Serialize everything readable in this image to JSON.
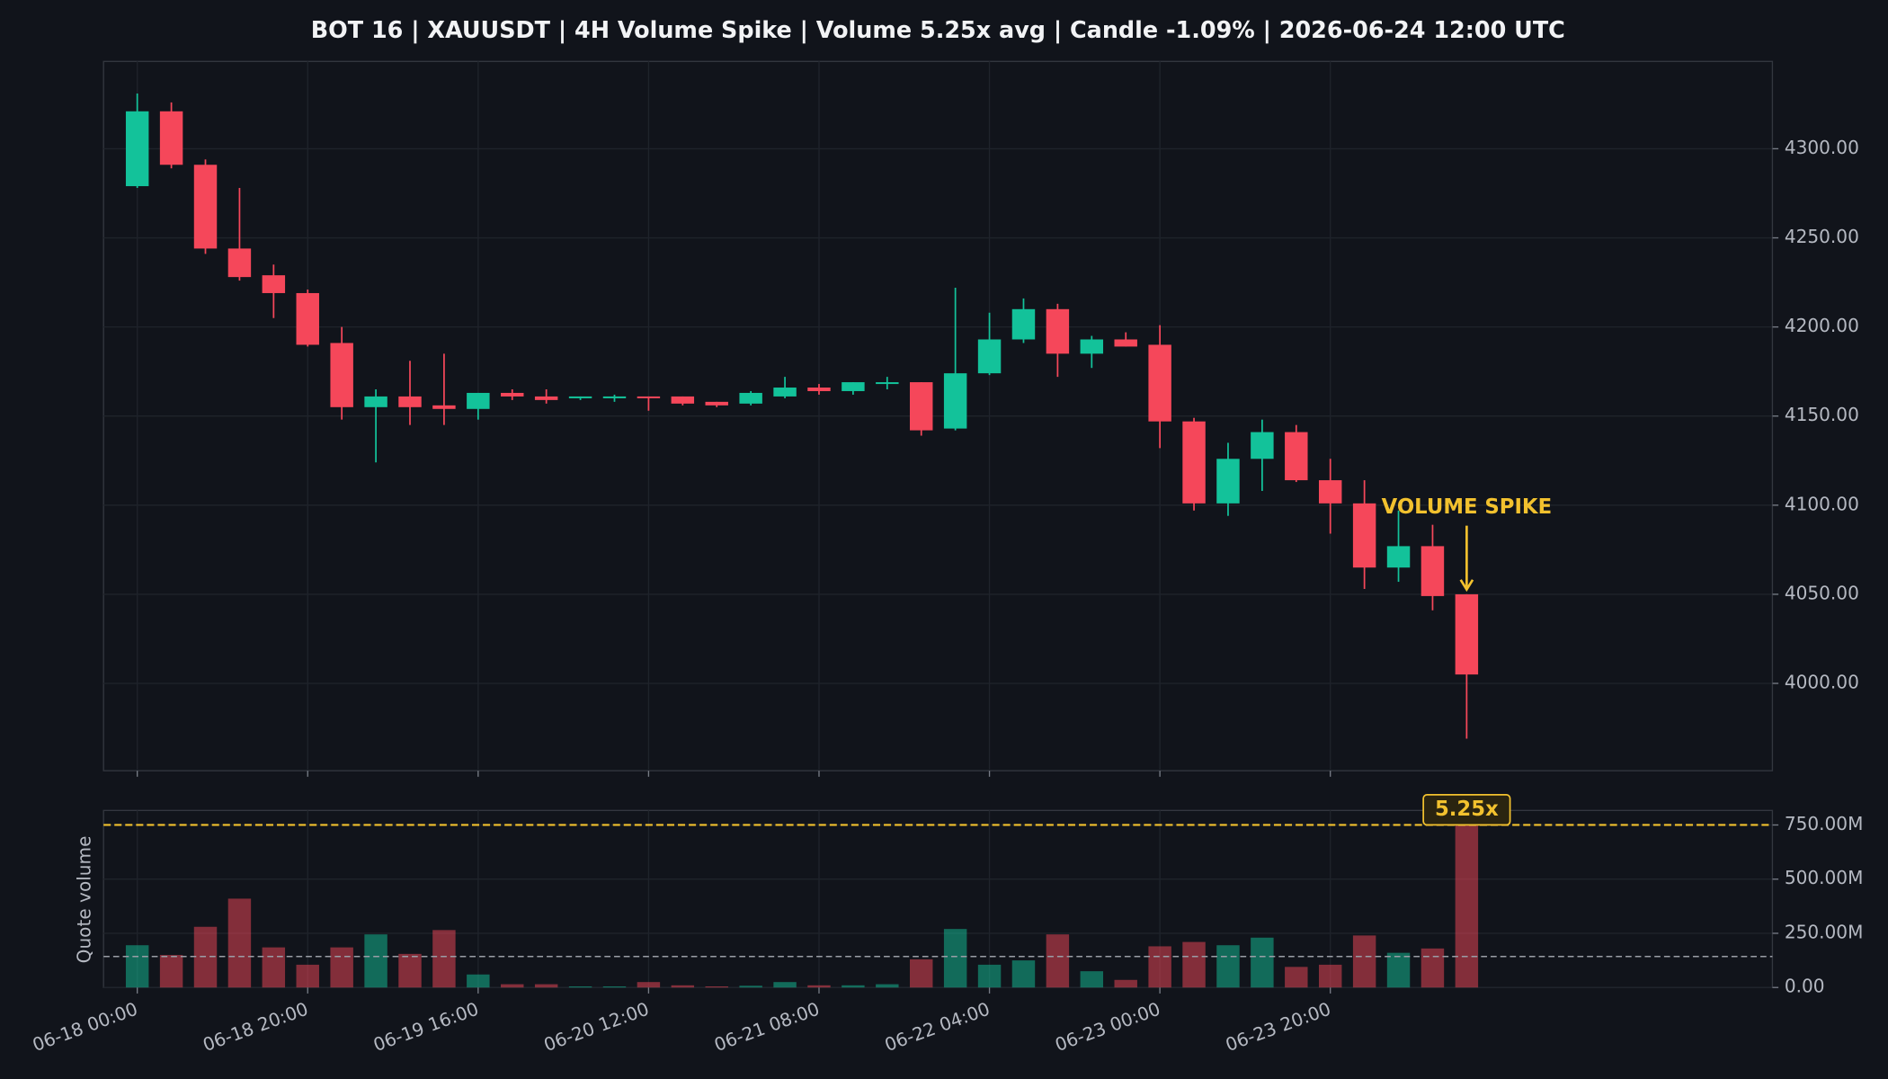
{
  "chart_data": {
    "type": "candlestick",
    "title": "BOT 16 | XAUUSDT | 4H Volume Spike | Volume 5.25x avg | Candle -1.09% | 2026-06-24 12:00 UTC",
    "categories": [
      "06-18 00:00",
      null,
      null,
      null,
      null,
      "06-18 20:00",
      null,
      null,
      null,
      null,
      "06-19 16:00",
      null,
      null,
      null,
      null,
      "06-20 12:00",
      null,
      null,
      null,
      null,
      "06-21 08:00",
      null,
      null,
      null,
      null,
      "06-22 04:00",
      null,
      null,
      null,
      null,
      "06-23 00:00",
      null,
      null,
      null,
      null,
      "06-23 20:00",
      null,
      null,
      null,
      null
    ],
    "open": [
      4279,
      4321,
      4291,
      4244,
      4229,
      4219,
      4191,
      4155,
      4161,
      4156,
      4154,
      4163,
      4161,
      4160,
      4160,
      4161,
      4161,
      4158,
      4157,
      4161,
      4166,
      4164,
      4168,
      4169,
      4143,
      4174,
      4193,
      4210,
      4185,
      4193,
      4190,
      4147,
      4101,
      4126,
      4141,
      4114,
      4101,
      4065,
      4077,
      4050
    ],
    "high": [
      4331,
      4326,
      4294,
      4278,
      4235,
      4221,
      4200,
      4165,
      4181,
      4185,
      4163,
      4165,
      4165,
      4161,
      4162,
      4161,
      4161,
      4158,
      4164,
      4172,
      4168,
      4169,
      4172,
      4169,
      4222,
      4208,
      4216,
      4213,
      4195,
      4197,
      4201,
      4149,
      4135,
      4148,
      4145,
      4126,
      4114,
      4097,
      4089,
      4050
    ],
    "low": [
      4278,
      4289,
      4241,
      4226,
      4205,
      4189,
      4148,
      4124,
      4145,
      4145,
      4148,
      4159,
      4157,
      4159,
      4158,
      4153,
      4156,
      4155,
      4156,
      4160,
      4162,
      4162,
      4165,
      4139,
      4142,
      4173,
      4191,
      4172,
      4177,
      4189,
      4132,
      4097,
      4094,
      4108,
      4113,
      4084,
      4053,
      4057,
      4041,
      3969
    ],
    "close": [
      4321,
      4291,
      4244,
      4228,
      4219,
      4190,
      4155,
      4161,
      4155,
      4154,
      4163,
      4161,
      4159,
      4161,
      4161,
      4160,
      4157,
      4156,
      4163,
      4166,
      4164,
      4169,
      4169,
      4142,
      4174,
      4193,
      4210,
      4185,
      4193,
      4189,
      4147,
      4101,
      4126,
      4141,
      4114,
      4101,
      4065,
      4077,
      4049,
      4005
    ],
    "volume": [
      195000000,
      150000000,
      280000000,
      410000000,
      185000000,
      105000000,
      185000000,
      245000000,
      155000000,
      265000000,
      60000000,
      15000000,
      15000000,
      5000000,
      5000000,
      25000000,
      10000000,
      5000000,
      8000000,
      25000000,
      10000000,
      10000000,
      15000000,
      130000000,
      270000000,
      105000000,
      125000000,
      245000000,
      75000000,
      35000000,
      190000000,
      210000000,
      195000000,
      230000000,
      95000000,
      105000000,
      240000000,
      160000000,
      180000000,
      750000000
    ],
    "up_color": "#13c29a",
    "down_color": "#f5475a",
    "ylim": [
      3951,
      4349
    ],
    "yticks": [
      {
        "value": 4000,
        "label": "4000.00"
      },
      {
        "value": 4050,
        "label": "4050.00"
      },
      {
        "value": 4100,
        "label": "4100.00"
      },
      {
        "value": 4150,
        "label": "4150.00"
      },
      {
        "value": 4200,
        "label": "4200.00"
      },
      {
        "value": 4250,
        "label": "4250.00"
      },
      {
        "value": 4300,
        "label": "4300.00"
      }
    ],
    "volume_ylabel": "Quote volume",
    "volume_ylim": [
      0,
      817000000
    ],
    "volume_yticks": [
      {
        "value": 0,
        "label": "0.00"
      },
      {
        "value": 250000000,
        "label": "250.00M"
      },
      {
        "value": 500000000,
        "label": "500.00M"
      },
      {
        "value": 750000000,
        "label": "750.00M"
      }
    ],
    "avg_volume": 143000000,
    "spike_volume": 750000000,
    "spike_label": "VOLUME SPIKE",
    "ratio_label": "5.25x",
    "highlight_color": "#f2c12e",
    "grid": true
  }
}
